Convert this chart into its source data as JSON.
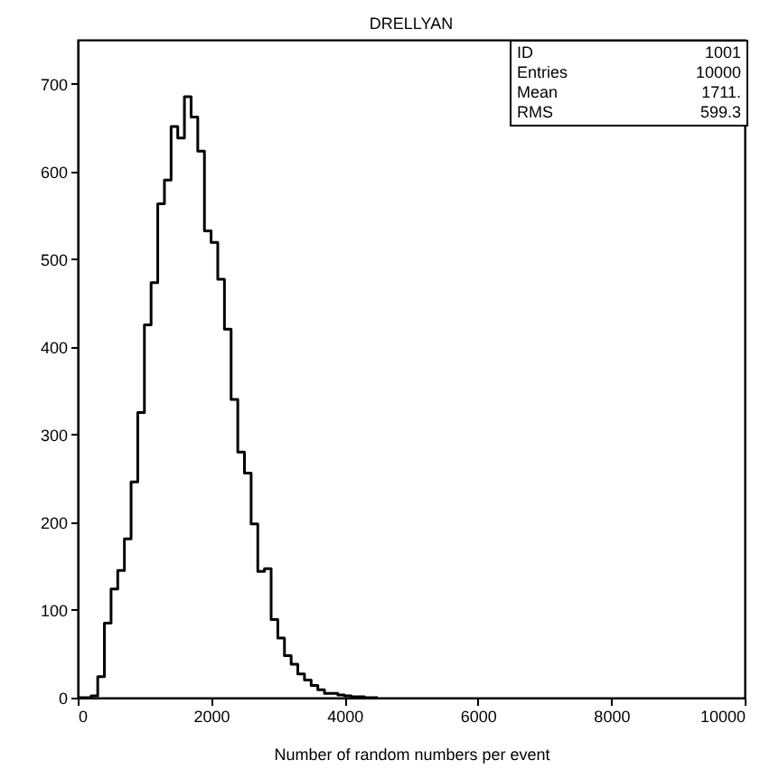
{
  "chart_data": {
    "type": "histogram",
    "title": "DRELLYAN",
    "xlabel": "Number of random numbers per event",
    "bins": [
      0,
      100,
      200,
      300,
      400,
      500,
      600,
      700,
      800,
      900,
      1000,
      1100,
      1200,
      1300,
      1400,
      1500,
      1600,
      1700,
      1800,
      1900,
      2000,
      2100,
      2200,
      2300,
      2400,
      2500,
      2600,
      2700,
      2800,
      2900,
      3000,
      3100,
      3200,
      3300,
      3400,
      3500,
      3600,
      3700,
      3800,
      3900,
      4000,
      4100,
      4200,
      4300,
      4400,
      4500
    ],
    "values": [
      0,
      0,
      2,
      24,
      85,
      124,
      145,
      181,
      246,
      325,
      425,
      473,
      563,
      590,
      651,
      638,
      685,
      662,
      623,
      532,
      519,
      477,
      420,
      340,
      280,
      256,
      198,
      144,
      147,
      89,
      68,
      48,
      38,
      27,
      20,
      14,
      9,
      5,
      5,
      3,
      2,
      1,
      1,
      0,
      0
    ],
    "color": "#000000",
    "xlim": [
      0,
      10000
    ],
    "xticks": [
      0,
      2000,
      4000,
      6000,
      8000,
      10000
    ],
    "ylim": [
      0,
      750
    ],
    "yticks": [
      0,
      100,
      200,
      300,
      400,
      500,
      600,
      700
    ],
    "annotations": [
      "ID 1001",
      "Entries 10000",
      "Mean 1711.",
      "RMS 599.3"
    ]
  }
}
